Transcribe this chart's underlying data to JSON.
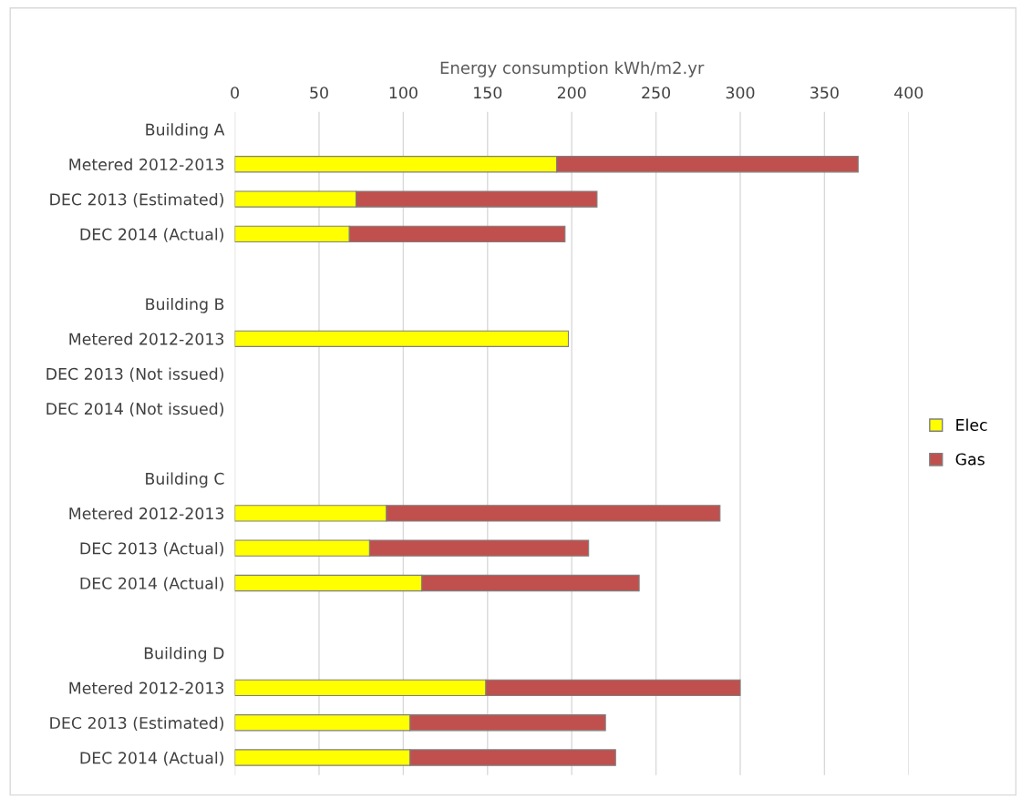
{
  "chart_data": {
    "type": "bar",
    "orientation": "horizontal",
    "stacked": true,
    "xlabel": "Energy consumption kWh/m2.yr",
    "categories": [
      "Building A",
      "Metered 2012-2013",
      "DEC 2013 (Estimated)",
      "DEC 2014 (Actual)",
      null,
      "Building B",
      "Metered 2012-2013",
      "DEC 2013 (Not issued)",
      "DEC 2014 (Not issued)",
      null,
      "Building C",
      "Metered 2012-2013",
      "DEC 2013 (Actual)",
      "DEC 2014 (Actual)",
      null,
      "Building D",
      "Metered 2012-2013",
      "DEC 2013 (Estimated)",
      "DEC 2014 (Actual)"
    ],
    "series": [
      {
        "name": "Elec",
        "color": "#ffff00",
        "values": [
          null,
          191,
          72,
          68,
          null,
          null,
          198,
          null,
          null,
          null,
          null,
          90,
          80,
          111,
          null,
          null,
          149,
          104,
          104
        ]
      },
      {
        "name": "Gas",
        "color": "#c0504d",
        "values": [
          null,
          179,
          143,
          128,
          null,
          null,
          null,
          null,
          null,
          null,
          null,
          198,
          130,
          129,
          null,
          null,
          151,
          116,
          122
        ]
      }
    ],
    "xlim": [
      0,
      400
    ],
    "xticks": [
      0,
      50,
      100,
      150,
      200,
      250,
      300,
      350,
      400
    ],
    "grid": "x",
    "legend": "right"
  }
}
